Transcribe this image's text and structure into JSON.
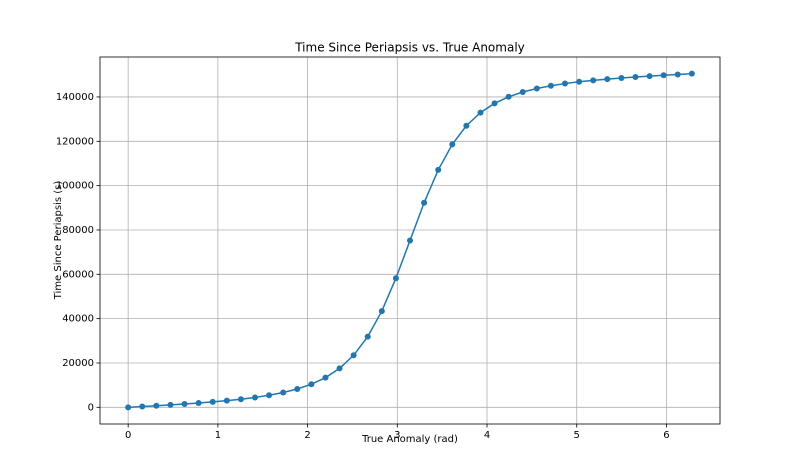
{
  "chart_data": {
    "type": "line",
    "title": "Time Since Periapsis vs. True Anomaly",
    "x_label": "True Anomaly (rad)",
    "y_label": "Time Since Periapsis (s)",
    "x": [
      0,
      0.1571,
      0.3142,
      0.4712,
      0.6283,
      0.7854,
      0.9425,
      1.0996,
      1.2566,
      1.4137,
      1.5708,
      1.7279,
      1.885,
      2.042,
      2.1991,
      2.3562,
      2.5133,
      2.6704,
      2.8274,
      2.9845,
      3.1416,
      3.2987,
      3.4558,
      3.6128,
      3.7699,
      3.927,
      4.0841,
      4.2412,
      4.3982,
      4.5553,
      4.7124,
      4.8695,
      5.0265,
      5.1836,
      5.3407,
      5.4978,
      5.6549,
      5.8119,
      5.969,
      6.1261,
      6.2832
    ],
    "series": [
      {
        "color": "#1f77b4",
        "values": [
          0,
          357,
          721,
          1102,
          1507,
          1950,
          2443,
          3004,
          3665,
          4455,
          5440,
          6671,
          8276,
          10424,
          13378,
          17546,
          23472,
          31891,
          43417,
          58240,
          75250,
          92260,
          107083,
          118609,
          127028,
          132954,
          137122,
          140076,
          142224,
          143829,
          145060,
          146045,
          146835,
          147496,
          148057,
          148550,
          148993,
          149398,
          149779,
          150143,
          150500
        ]
      }
    ],
    "xlim": [
      -0.314,
      6.597
    ],
    "ylim": [
      -7525,
      158025
    ],
    "xticks": [
      0,
      1,
      2,
      3,
      4,
      5,
      6
    ],
    "yticks": [
      0,
      20000,
      40000,
      60000,
      80000,
      100000,
      120000,
      140000
    ],
    "grid": true
  }
}
